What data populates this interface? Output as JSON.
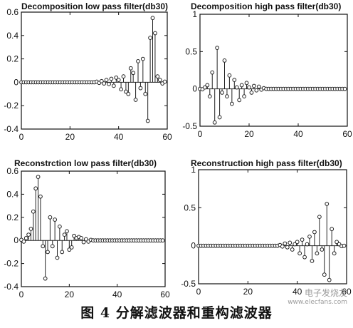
{
  "chart_data": [
    {
      "type": "stem",
      "title": "Decomposition low pass filter(db30)",
      "xlim": [
        0,
        60
      ],
      "ylim": [
        -0.4,
        0.6
      ],
      "xticks": [
        0,
        20,
        40,
        60
      ],
      "xtick_labels": [
        "0",
        "20",
        "40",
        "60"
      ],
      "yticks": [
        -0.4,
        -0.2,
        0,
        0.2,
        0.4,
        0.6
      ],
      "ytick_labels": [
        "-0.4",
        "-0.2",
        "0",
        "0.2",
        "0.4",
        "0.6"
      ],
      "x": [
        0,
        1,
        2,
        3,
        4,
        5,
        6,
        7,
        8,
        9,
        10,
        11,
        12,
        13,
        14,
        15,
        16,
        17,
        18,
        19,
        20,
        21,
        22,
        23,
        24,
        25,
        26,
        27,
        28,
        29,
        30,
        31,
        32,
        33,
        34,
        35,
        36,
        37,
        38,
        39,
        40,
        41,
        42,
        43,
        44,
        45,
        46,
        47,
        48,
        49,
        50,
        51,
        52,
        53,
        54,
        55,
        56,
        57,
        58,
        59
      ],
      "values": [
        0,
        0,
        0,
        0,
        0,
        0,
        0,
        0,
        0,
        0,
        0,
        0,
        0,
        0,
        0,
        0,
        0,
        0,
        0,
        0,
        0,
        0,
        0,
        0,
        0,
        0,
        0,
        0,
        0,
        0,
        0,
        0.005,
        -0.005,
        0.01,
        -0.01,
        0.02,
        -0.015,
        0.03,
        -0.03,
        0.04,
        0.02,
        -0.06,
        0.05,
        -0.08,
        -0.1,
        0.12,
        0.08,
        -0.15,
        0.18,
        -0.05,
        0.2,
        -0.1,
        -0.33,
        0.38,
        0.55,
        0.42,
        0.05,
        0.02,
        -0.01,
        0.005
      ]
    },
    {
      "type": "stem",
      "title": "Decomposition high pass filter(db30)",
      "xlim": [
        0,
        60
      ],
      "ylim": [
        -0.5,
        1
      ],
      "xticks": [
        0,
        20,
        40,
        60
      ],
      "xtick_labels": [
        "0",
        "20",
        "40",
        "60"
      ],
      "yticks": [
        -0.5,
        0,
        0.5,
        1
      ],
      "ytick_labels": [
        "-0.5",
        "0",
        "0.5",
        "1"
      ],
      "x": [
        0,
        1,
        2,
        3,
        4,
        5,
        6,
        7,
        8,
        9,
        10,
        11,
        12,
        13,
        14,
        15,
        16,
        17,
        18,
        19,
        20,
        21,
        22,
        23,
        24,
        25,
        26,
        27,
        28,
        29,
        30,
        31,
        32,
        33,
        34,
        35,
        36,
        37,
        38,
        39,
        40,
        41,
        42,
        43,
        44,
        45,
        46,
        47,
        48,
        49,
        50,
        51,
        52,
        53,
        54,
        55,
        56,
        57,
        58,
        59
      ],
      "values": [
        0,
        -0.005,
        0.02,
        0.05,
        -0.1,
        0.22,
        -0.45,
        0.55,
        -0.38,
        -0.05,
        0.38,
        -0.1,
        0.18,
        -0.2,
        0.12,
        0.02,
        -0.15,
        0.05,
        -0.1,
        0.08,
        0.02,
        -0.05,
        0.04,
        -0.02,
        0.03,
        -0.01,
        0.01,
        0,
        0,
        0,
        0,
        0,
        0,
        0,
        0,
        0,
        0,
        0,
        0,
        0,
        0,
        0,
        0,
        0,
        0,
        0,
        0,
        0,
        0,
        0,
        0,
        0,
        0,
        0,
        0,
        0,
        0,
        0,
        0,
        0
      ]
    },
    {
      "type": "stem",
      "title": "Reconstrction low pass filter(db30)",
      "xlim": [
        0,
        60
      ],
      "ylim": [
        -0.4,
        0.6
      ],
      "xticks": [
        0,
        20,
        40,
        60
      ],
      "xtick_labels": [
        "0",
        "20",
        "40",
        "60"
      ],
      "yticks": [
        -0.4,
        -0.2,
        0,
        0.2,
        0.4,
        0.6
      ],
      "ytick_labels": [
        "-0.4",
        "-0.2",
        "0",
        "0.2",
        "0.4",
        "0.6"
      ],
      "x": [
        0,
        1,
        2,
        3,
        4,
        5,
        6,
        7,
        8,
        9,
        10,
        11,
        12,
        13,
        14,
        15,
        16,
        17,
        18,
        19,
        20,
        21,
        22,
        23,
        24,
        25,
        26,
        27,
        28,
        29,
        30,
        31,
        32,
        33,
        34,
        35,
        36,
        37,
        38,
        39,
        40,
        41,
        42,
        43,
        44,
        45,
        46,
        47,
        48,
        49,
        50,
        51,
        52,
        53,
        54,
        55,
        56,
        57,
        58,
        59
      ],
      "values": [
        0.005,
        -0.01,
        0.02,
        0.05,
        0.1,
        0.25,
        0.45,
        0.55,
        0.38,
        -0.05,
        -0.33,
        -0.1,
        0.2,
        -0.05,
        0.18,
        -0.15,
        0.12,
        -0.1,
        0.05,
        0.08,
        -0.08,
        -0.06,
        0.04,
        0.02,
        0.03,
        0.02,
        -0.015,
        0.01,
        -0.01,
        0.005,
        0,
        0,
        0,
        0,
        0,
        0,
        0,
        0,
        0,
        0,
        0,
        0,
        0,
        0,
        0,
        0,
        0,
        0,
        0,
        0,
        0,
        0,
        0,
        0,
        0,
        0,
        0,
        0,
        0,
        0
      ]
    },
    {
      "type": "stem",
      "title": "Reconstruction high pass filter(db30)",
      "xlim": [
        0,
        60
      ],
      "ylim": [
        -0.5,
        1
      ],
      "xticks": [
        0,
        20,
        40,
        60
      ],
      "xtick_labels": [
        "0",
        "20",
        "40",
        "60"
      ],
      "yticks": [
        -0.5,
        0,
        0.5,
        1
      ],
      "ytick_labels": [
        "-0.5",
        "0",
        "0.5",
        "1"
      ],
      "x": [
        0,
        1,
        2,
        3,
        4,
        5,
        6,
        7,
        8,
        9,
        10,
        11,
        12,
        13,
        14,
        15,
        16,
        17,
        18,
        19,
        20,
        21,
        22,
        23,
        24,
        25,
        26,
        27,
        28,
        29,
        30,
        31,
        32,
        33,
        34,
        35,
        36,
        37,
        38,
        39,
        40,
        41,
        42,
        43,
        44,
        45,
        46,
        47,
        48,
        49,
        50,
        51,
        52,
        53,
        54,
        55,
        56,
        57,
        58,
        59
      ],
      "values": [
        0,
        0,
        0,
        0,
        0,
        0,
        0,
        0,
        0,
        0,
        0,
        0,
        0,
        0,
        0,
        0,
        0,
        0,
        0,
        0,
        0,
        0,
        0,
        0,
        0,
        0,
        0,
        0,
        0,
        0,
        0,
        0,
        0,
        0.01,
        -0.01,
        0.03,
        -0.02,
        0.04,
        -0.05,
        0.02,
        0.05,
        -0.1,
        0.08,
        -0.15,
        0.02,
        0.12,
        -0.2,
        0.18,
        -0.1,
        0.38,
        -0.05,
        -0.38,
        0.55,
        -0.45,
        0.22,
        -0.1,
        0.05,
        0.02,
        -0.005,
        0
      ]
    }
  ],
  "caption": "图 4   分解滤波器和重构滤波器",
  "watermark": {
    "line1": "电子发烧友",
    "line2": "www.elecfans.com"
  },
  "colors": {
    "stem": "#222222",
    "axes": "#111111",
    "background": "#ffffff"
  }
}
